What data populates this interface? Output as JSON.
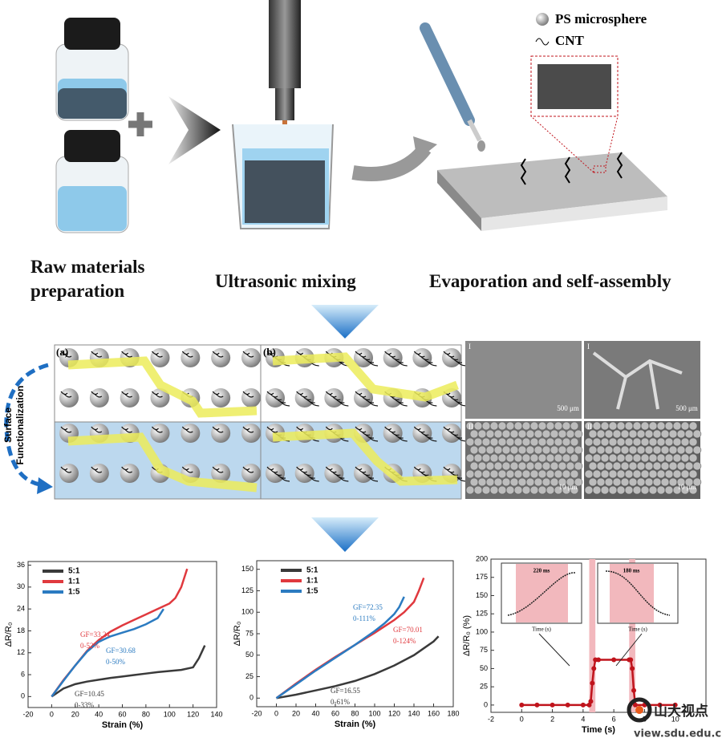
{
  "figure": {
    "legend_items": [
      "PS microsphere",
      "CNT"
    ],
    "steps": [
      "Raw materials preparation",
      "Ultrasonic mixing",
      "Evaporation and self-assembly"
    ],
    "panels": [
      "(a)",
      "(b)"
    ],
    "side_label": "Surface Functionalization",
    "sem_labels": [
      "I",
      "I",
      "II",
      "II"
    ],
    "scale_bars": [
      "500 μm",
      "500 μm",
      "10 μm",
      "10 μm"
    ],
    "watermark": [
      "山大视点",
      "view.sdu.edu.cn"
    ]
  },
  "chart_data": [
    {
      "type": "line",
      "x_label": "Strain (%)",
      "y_label": "ΔR/R₀",
      "xlim": [
        -20,
        140
      ],
      "xticks": [
        -20,
        0,
        20,
        40,
        60,
        80,
        100,
        120,
        140
      ],
      "ylim": [
        -3,
        37
      ],
      "yticks": [
        0,
        6,
        12,
        18,
        24,
        30,
        36
      ],
      "legend": "upper left",
      "series": [
        {
          "name": "5:1",
          "color": "#3a3a3a",
          "x": [
            0,
            10,
            20,
            30,
            40,
            50,
            60,
            70,
            80,
            90,
            100,
            110,
            120,
            125,
            130
          ],
          "values": [
            0,
            2.2,
            3.4,
            4.1,
            4.6,
            5.1,
            5.5,
            5.9,
            6.3,
            6.7,
            7.0,
            7.3,
            8.0,
            10.5,
            14
          ]
        },
        {
          "name": "1:1",
          "color": "#e0393e",
          "x": [
            0,
            10,
            20,
            30,
            40,
            50,
            60,
            70,
            80,
            90,
            100,
            105,
            110,
            115
          ],
          "values": [
            0,
            4.5,
            8.5,
            12.5,
            15.5,
            17.8,
            19.5,
            21,
            22.5,
            24,
            25.5,
            27,
            30,
            35
          ]
        },
        {
          "name": "1:5",
          "color": "#2b7bc1",
          "x": [
            0,
            10,
            20,
            30,
            40,
            50,
            60,
            70,
            80,
            90,
            95
          ],
          "values": [
            0,
            4.3,
            8.5,
            12.3,
            15,
            16.5,
            17.5,
            18.5,
            19.8,
            21.5,
            24
          ]
        }
      ],
      "annotations": [
        {
          "text": "GF=33.24",
          "color": "#e0393e"
        },
        {
          "text": "0-52%",
          "color": "#e0393e"
        },
        {
          "text": "GF=30.68",
          "color": "#2b7bc1"
        },
        {
          "text": "0-50%",
          "color": "#2b7bc1"
        },
        {
          "text": "GF=10.45",
          "color": "#3a3a3a"
        },
        {
          "text": "0-33%",
          "color": "#3a3a3a"
        }
      ]
    },
    {
      "type": "line",
      "x_label": "Strain (%)",
      "y_label": "ΔR/R₀",
      "xlim": [
        -20,
        180
      ],
      "xticks": [
        -20,
        0,
        20,
        40,
        60,
        80,
        100,
        120,
        140,
        160,
        180
      ],
      "ylim": [
        -10,
        160
      ],
      "yticks": [
        0,
        25,
        50,
        75,
        100,
        125,
        150
      ],
      "legend": "upper left",
      "series": [
        {
          "name": "5:1",
          "color": "#3a3a3a",
          "x": [
            0,
            20,
            40,
            60,
            80,
            100,
            120,
            140,
            150,
            160,
            165
          ],
          "values": [
            0,
            4,
            9,
            14,
            20,
            28,
            38,
            50,
            58,
            66,
            72
          ]
        },
        {
          "name": "1:1",
          "color": "#e0393e",
          "x": [
            0,
            20,
            40,
            60,
            80,
            100,
            120,
            130,
            140,
            145,
            150
          ],
          "values": [
            0,
            17,
            33,
            48,
            62,
            76,
            91,
            100,
            112,
            125,
            140
          ]
        },
        {
          "name": "1:5",
          "color": "#2b7bc1",
          "x": [
            0,
            20,
            40,
            60,
            80,
            100,
            110,
            120,
            125,
            130
          ],
          "values": [
            0,
            16,
            32,
            47,
            62,
            78,
            87,
            98,
            106,
            118
          ]
        }
      ],
      "annotations": [
        {
          "text": "GF=72.35",
          "color": "#2b7bc1"
        },
        {
          "text": "0-111%",
          "color": "#2b7bc1"
        },
        {
          "text": "GF=70.01",
          "color": "#e0393e"
        },
        {
          "text": "0-124%",
          "color": "#e0393e"
        },
        {
          "text": "GF=16.55",
          "color": "#3a3a3a"
        },
        {
          "text": "0-61%",
          "color": "#3a3a3a"
        }
      ]
    },
    {
      "type": "line",
      "x_label": "Time (s)",
      "y_label": "ΔR/R₀ (%)",
      "xlim": [
        -2,
        12
      ],
      "xticks": [
        -2,
        0,
        2,
        4,
        6,
        8,
        10
      ],
      "ylim": [
        -10,
        200
      ],
      "yticks": [
        0,
        25,
        50,
        75,
        100,
        125,
        150,
        175,
        200
      ],
      "markers": true,
      "highlight_ranges": [
        [
          4.4,
          4.8
        ],
        [
          7.0,
          7.4
        ]
      ],
      "highlight_color": "#f2b8bd",
      "series": [
        {
          "name": null,
          "color": "#c0141c",
          "x": [
            0,
            1,
            2,
            3,
            4,
            4.4,
            4.5,
            4.6,
            4.7,
            4.8,
            5,
            6,
            7,
            7.1,
            7.2,
            7.3,
            7.4,
            8,
            9,
            10
          ],
          "values": [
            0,
            0,
            0,
            0,
            0,
            0,
            5,
            30,
            50,
            62,
            62,
            62,
            62,
            62,
            50,
            20,
            0,
            0,
            0,
            0
          ]
        }
      ],
      "insets": [
        {
          "label": "220 ms",
          "x_label": "Time (s)"
        },
        {
          "label": "180 ms",
          "x_label": "Time (s)"
        }
      ]
    }
  ]
}
